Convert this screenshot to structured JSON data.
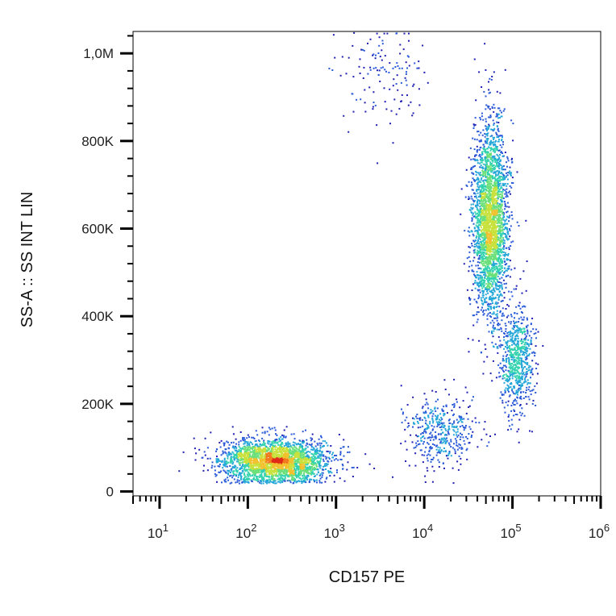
{
  "chart_data": {
    "type": "scatter",
    "subtype": "flow-cytometry-density-dot-plot",
    "xlabel": "CD157 PE",
    "ylabel": "SS-A :: SS INT LIN",
    "x_scale": "log",
    "y_scale": "linear",
    "xlim": [
      5,
      1000000
    ],
    "ylim": [
      -10000,
      1050000
    ],
    "x_ticks": [
      {
        "value": 10,
        "base": "10",
        "exp": "1"
      },
      {
        "value": 100,
        "base": "10",
        "exp": "2"
      },
      {
        "value": 1000,
        "base": "10",
        "exp": "3"
      },
      {
        "value": 10000,
        "base": "10",
        "exp": "4"
      },
      {
        "value": 100000,
        "base": "10",
        "exp": "5"
      },
      {
        "value": 1000000,
        "base": "10",
        "exp": "6"
      }
    ],
    "y_ticks": [
      {
        "value": 0,
        "label": "0"
      },
      {
        "value": 200000,
        "label": "200K"
      },
      {
        "value": 400000,
        "label": "400K"
      },
      {
        "value": 600000,
        "label": "600K"
      },
      {
        "value": 800000,
        "label": "800K"
      },
      {
        "value": 1000000,
        "label": "1,0M"
      }
    ],
    "grid": false,
    "legend": "none",
    "density_colors": [
      "#1f1fb4",
      "#2a5ad8",
      "#23a6d8",
      "#33d3b0",
      "#6be07a",
      "#c8e13c",
      "#f2c12e",
      "#f27a1e",
      "#e02a18"
    ],
    "populations": [
      {
        "center": [
          200,
          70000
        ],
        "x_spread_decades": 0.3,
        "y_spread": 25000,
        "events": 2600
      },
      {
        "center": [
          55000,
          620000
        ],
        "x_spread_decades": 0.1,
        "y_spread": 110000,
        "events": 2800
      },
      {
        "center": [
          110000,
          300000
        ],
        "x_spread_decades": 0.1,
        "y_spread": 60000,
        "events": 700
      },
      {
        "center": [
          15000,
          140000
        ],
        "x_spread_decades": 0.2,
        "y_spread": 40000,
        "events": 420
      },
      {
        "center": [
          3500,
          950000
        ],
        "x_spread_decades": 0.25,
        "y_spread": 60000,
        "events": 130
      }
    ]
  }
}
